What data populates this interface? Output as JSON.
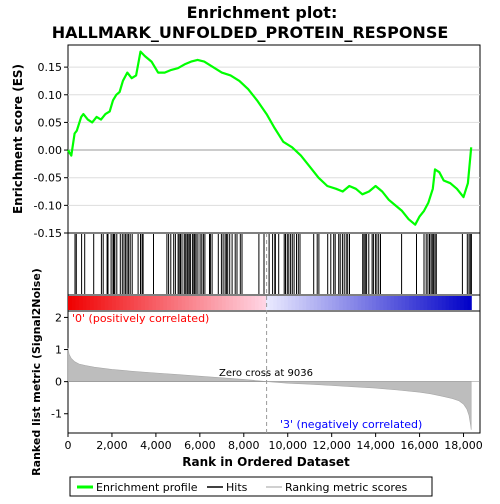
{
  "chart_data": {
    "type": "line",
    "title_line1": "Enrichment plot:",
    "title_line2": "HALLMARK_UNFOLDED_PROTEIN_RESPONSE",
    "es_panel": {
      "ylabel": "Enrichment score (ES)",
      "ylim": [
        -0.15,
        0.19
      ],
      "yticks": [
        -0.15,
        -0.1,
        -0.05,
        0.0,
        0.05,
        0.1,
        0.15
      ],
      "ytick_labels": [
        "-0.15",
        "-0.10",
        "-0.05",
        "0.00",
        "0.05",
        "0.10",
        "0.15"
      ],
      "series": [
        {
          "name": "Enrichment profile",
          "color": "#00ff00",
          "x": [
            0,
            150,
            300,
            400,
            600,
            700,
            900,
            1100,
            1300,
            1500,
            1700,
            1900,
            2050,
            2200,
            2350,
            2500,
            2700,
            2900,
            3100,
            3300,
            3500,
            3800,
            4100,
            4400,
            4700,
            5000,
            5300,
            5600,
            5900,
            6200,
            6600,
            7000,
            7400,
            7800,
            8200,
            8600,
            9036,
            9400,
            9800,
            10200,
            10600,
            11000,
            11400,
            11800,
            12200,
            12500,
            12800,
            13100,
            13400,
            13700,
            14000,
            14300,
            14600,
            14900,
            15200,
            15500,
            15800,
            16000,
            16200,
            16400,
            16600,
            16700,
            16900,
            17100,
            17400,
            17700,
            18000,
            18200,
            18350
          ],
          "y": [
            0.0,
            -0.01,
            0.03,
            0.035,
            0.06,
            0.065,
            0.055,
            0.05,
            0.06,
            0.055,
            0.065,
            0.07,
            0.09,
            0.1,
            0.105,
            0.125,
            0.14,
            0.13,
            0.135,
            0.178,
            0.17,
            0.16,
            0.14,
            0.14,
            0.145,
            0.148,
            0.155,
            0.16,
            0.163,
            0.16,
            0.15,
            0.14,
            0.135,
            0.125,
            0.11,
            0.09,
            0.065,
            0.04,
            0.015,
            0.005,
            -0.01,
            -0.03,
            -0.05,
            -0.065,
            -0.07,
            -0.075,
            -0.065,
            -0.07,
            -0.08,
            -0.075,
            -0.065,
            -0.075,
            -0.09,
            -0.1,
            -0.11,
            -0.125,
            -0.135,
            -0.12,
            -0.11,
            -0.095,
            -0.07,
            -0.035,
            -0.04,
            -0.055,
            -0.06,
            -0.07,
            -0.085,
            -0.06,
            0.005
          ]
        }
      ],
      "hits": [
        320,
        380,
        620,
        760,
        1170,
        1520,
        1600,
        1780,
        1820,
        1960,
        2050,
        2090,
        2130,
        2220,
        2380,
        2470,
        2550,
        2620,
        2690,
        2760,
        2830,
        2920,
        3190,
        3300,
        3370,
        3420,
        3890,
        4500,
        4580,
        4680,
        4810,
        4890,
        5010,
        5060,
        5120,
        5190,
        5290,
        5340,
        5410,
        5460,
        5520,
        5580,
        5670,
        5730,
        5770,
        5830,
        5910,
        6010,
        6090,
        6160,
        6230,
        6440,
        6480,
        6560,
        6840,
        6980,
        7060,
        7150,
        7210,
        7270,
        7360,
        7470,
        7610,
        7690,
        7840,
        7920,
        8690,
        8920,
        9150,
        9310,
        9410,
        9440,
        9590,
        9840,
        9900,
        9980,
        10050,
        10130,
        10210,
        10290,
        10400,
        10480,
        10560,
        11180,
        11340,
        11420,
        11820,
        11960,
        12090,
        12160,
        12320,
        12390,
        12490,
        12570,
        12660,
        12730,
        12810,
        13410,
        13470,
        13530,
        13590,
        13690,
        13840,
        13900,
        13990,
        14060,
        14140,
        14220,
        15180,
        15860,
        16200,
        16300,
        16380,
        16450,
        16520,
        16580,
        16640,
        16700,
        16760,
        17950,
        18170,
        18250,
        18310,
        18360
      ]
    },
    "rank_panel": {
      "ylabel": "Ranked list metric (Signal2Noise)",
      "ylim": [
        -1.6,
        2.2
      ],
      "yticks": [
        -1,
        0,
        1,
        2
      ],
      "ytick_labels": [
        "-1",
        "0",
        "1",
        "2"
      ],
      "metric_x": [
        0,
        50,
        150,
        300,
        500,
        800,
        1200,
        2000,
        3000,
        4000,
        5000,
        6000,
        7000,
        8000,
        9036,
        10000,
        11000,
        12000,
        13000,
        14000,
        15000,
        16000,
        16500,
        17000,
        17500,
        17800,
        18000,
        18150,
        18250,
        18320,
        18350
      ],
      "metric_y": [
        1.05,
        0.85,
        0.72,
        0.62,
        0.55,
        0.5,
        0.45,
        0.38,
        0.32,
        0.27,
        0.22,
        0.17,
        0.12,
        0.07,
        0.0,
        -0.05,
        -0.08,
        -0.12,
        -0.16,
        -0.2,
        -0.26,
        -0.33,
        -0.38,
        -0.45,
        -0.53,
        -0.6,
        -0.7,
        -0.85,
        -1.05,
        -1.35,
        -1.5
      ],
      "zero_cross_label": "Zero cross at 9036",
      "zero_cross": 9036,
      "pos_label": "'0' (positively correlated)",
      "neg_label": "'3' (negatively correlated)"
    },
    "xaxis": {
      "xlabel": "Rank in Ordered Dataset",
      "xlim": [
        0,
        18750
      ],
      "xticks": [
        0,
        2000,
        4000,
        6000,
        8000,
        10000,
        12000,
        14000,
        16000,
        18000
      ],
      "xtick_labels": [
        "0",
        "2,000",
        "4,000",
        "6,000",
        "8,000",
        "10,000",
        "12,000",
        "14,000",
        "16,000",
        "18,000"
      ],
      "n_ranks": 18350
    },
    "legend": {
      "position": "bottom",
      "entries": [
        {
          "label": "Enrichment profile",
          "color": "#00ff00"
        },
        {
          "label": "Hits",
          "color": "#000000"
        },
        {
          "label": "Ranking metric scores",
          "color": "#c0c0c0"
        }
      ]
    }
  }
}
